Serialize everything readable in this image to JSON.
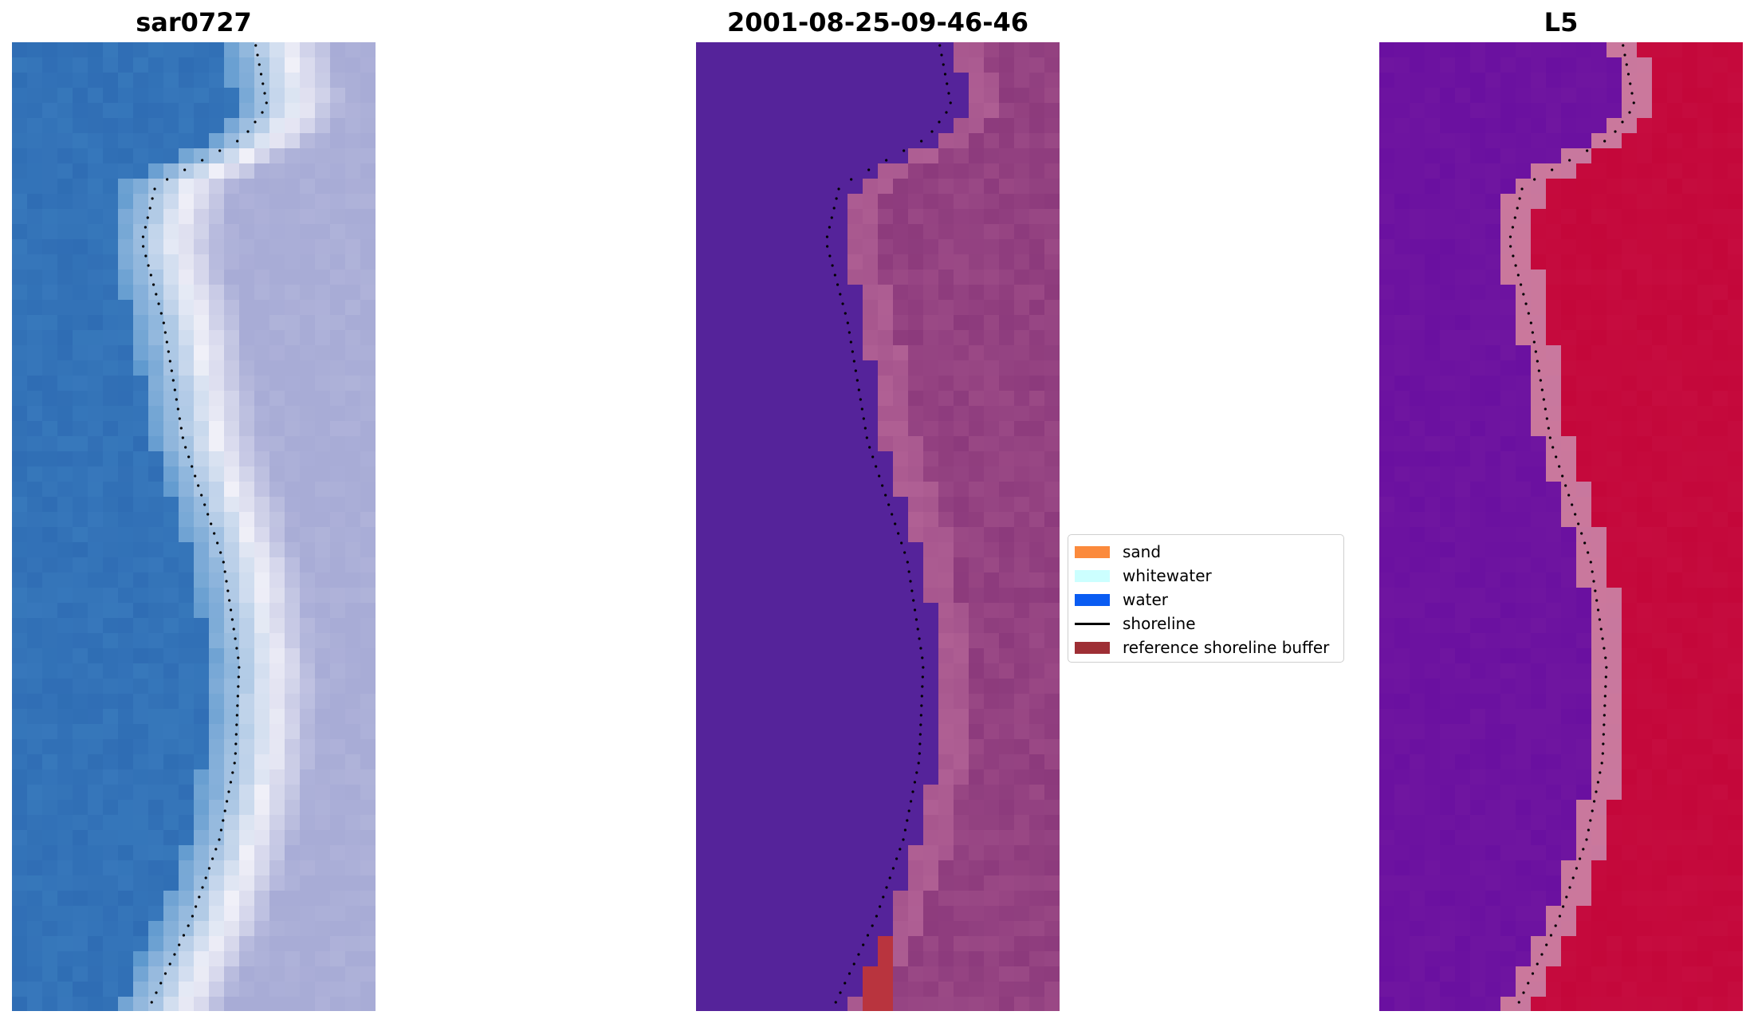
{
  "panels": [
    {
      "title": "sar0727"
    },
    {
      "title": "2001-08-25-09-46-46"
    },
    {
      "title": "L5"
    }
  ],
  "legend": {
    "items": [
      {
        "label": "sand",
        "color": "#fb8a3c",
        "kind": "patch"
      },
      {
        "label": "whitewater",
        "color": "#ccffff",
        "kind": "patch"
      },
      {
        "label": "water",
        "color": "#0a5cf2",
        "kind": "patch"
      },
      {
        "label": "shoreline",
        "color": "#000000",
        "kind": "line"
      },
      {
        "label": "reference shoreline buffer",
        "color": "#9e2f35",
        "kind": "patch"
      }
    ]
  },
  "colors": {
    "rgb_water": "#2f6db4",
    "rgb_sand": "#a8acd6",
    "class_water": "#55239a",
    "class_land": "#8c3a7c",
    "class_buffer_edge": "#b06094",
    "class_buffer": "#b9343e",
    "index_water": "#6a10a0",
    "index_land": "#c4073a",
    "index_edge": "#c8789e"
  }
}
